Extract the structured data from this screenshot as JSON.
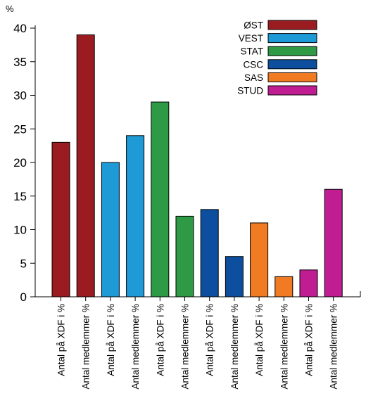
{
  "chart_data": {
    "type": "bar",
    "unit_label": "%",
    "ylim": [
      0,
      40
    ],
    "yticks": [
      0,
      5,
      10,
      15,
      20,
      25,
      30,
      35,
      40
    ],
    "grid": false,
    "legend_placement": "top-right",
    "bars": [
      {
        "category": "Antal på XDF i %",
        "series": "ØST",
        "value": 23
      },
      {
        "category": "Antal medlemmer %",
        "series": "ØST",
        "value": 39
      },
      {
        "category": "Antal på XDF i %",
        "series": "VEST",
        "value": 20
      },
      {
        "category": "Antal medlemmer %",
        "series": "VEST",
        "value": 24
      },
      {
        "category": "Antal på XDF i %",
        "series": "STAT",
        "value": 29
      },
      {
        "category": "Antal medlemmer %",
        "series": "STAT",
        "value": 12
      },
      {
        "category": "Antal på XDF i %",
        "series": "CSC",
        "value": 13
      },
      {
        "category": "Antal medlemmer %",
        "series": "CSC",
        "value": 6
      },
      {
        "category": "Antal på XDF i %",
        "series": "SAS",
        "value": 11
      },
      {
        "category": "Antal medlemmer %",
        "series": "SAS",
        "value": 3
      },
      {
        "category": "Antal på XDF i %",
        "series": "STUD",
        "value": 4
      },
      {
        "category": "Antal medlemmer %",
        "series": "STUD",
        "value": 16
      }
    ],
    "series": [
      {
        "name": "ØST",
        "color": "#9b1c20"
      },
      {
        "name": "VEST",
        "color": "#1e9ad6"
      },
      {
        "name": "STAT",
        "color": "#2e9a46"
      },
      {
        "name": "CSC",
        "color": "#0d4f9e"
      },
      {
        "name": "SAS",
        "color": "#f07b22"
      },
      {
        "name": "STUD",
        "color": "#c11d92"
      }
    ]
  }
}
